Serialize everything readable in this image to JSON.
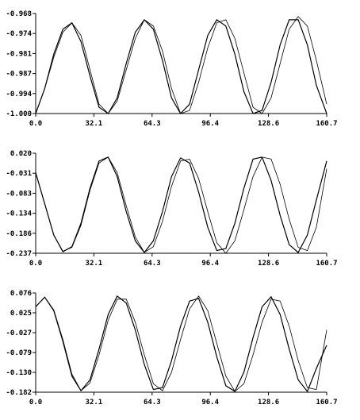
{
  "chart_data": [
    {
      "type": "line",
      "xlim": [
        0,
        160.7
      ],
      "ylim": [
        -1.0,
        -0.968
      ],
      "x_ticks": [
        "0.0",
        "32.1",
        "64.3",
        "96.4",
        "128.6",
        "160.7"
      ],
      "y_ticks": [
        "-0.968",
        "-0.974",
        "-0.981",
        "-0.987",
        "-0.994",
        "-1.000"
      ],
      "series": [
        {
          "x": [
            0,
            5,
            10,
            15,
            20,
            25,
            30,
            35,
            40,
            45,
            50,
            55,
            60,
            65,
            70,
            75,
            80,
            85,
            90,
            95,
            100,
            105,
            110,
            115,
            120,
            125,
            130,
            135,
            140,
            145,
            150,
            155,
            160.7
          ],
          "values": [
            -1.0,
            -0.992,
            -0.981,
            -0.973,
            -0.971,
            -0.977,
            -0.988,
            -0.998,
            -1.0,
            -0.995,
            -0.984,
            -0.974,
            -0.97,
            -0.973,
            -0.983,
            -0.995,
            -1.0,
            -0.997,
            -0.986,
            -0.975,
            -0.97,
            -0.972,
            -0.981,
            -0.993,
            -1.0,
            -0.999,
            -0.99,
            -0.978,
            -0.97,
            -0.97,
            -0.978,
            -0.991,
            -1.0
          ]
        },
        {
          "x": [
            0,
            5,
            10,
            15,
            20,
            25,
            30,
            35,
            40,
            45,
            50,
            55,
            60,
            65,
            70,
            75,
            80,
            85,
            90,
            95,
            100,
            105,
            110,
            115,
            120,
            125,
            130,
            135,
            140,
            145,
            150,
            155,
            160.7
          ],
          "values": [
            -1.0,
            -0.992,
            -0.982,
            -0.974,
            -0.971,
            -0.975,
            -0.986,
            -0.997,
            -1.0,
            -0.996,
            -0.986,
            -0.976,
            -0.97,
            -0.972,
            -0.98,
            -0.992,
            -1.0,
            -0.999,
            -0.99,
            -0.979,
            -0.971,
            -0.97,
            -0.976,
            -0.987,
            -0.998,
            -1.0,
            -0.995,
            -0.984,
            -0.973,
            -0.969,
            -0.972,
            -0.983,
            -0.997
          ]
        }
      ]
    },
    {
      "type": "line",
      "xlim": [
        0,
        160.7
      ],
      "ylim": [
        -0.237,
        0.02
      ],
      "x_ticks": [
        "0.0",
        "32.1",
        "64.3",
        "96.4",
        "128.6",
        "160.7"
      ],
      "y_ticks": [
        "0.020",
        "-0.031",
        "-0.083",
        "-0.134",
        "-0.186",
        "-0.237"
      ],
      "series": [
        {
          "x": [
            0,
            5,
            10,
            15,
            20,
            25,
            30,
            35,
            40,
            45,
            50,
            55,
            60,
            65,
            70,
            75,
            80,
            85,
            90,
            95,
            100,
            105,
            110,
            115,
            120,
            125,
            130,
            135,
            140,
            145,
            150,
            155,
            160.7
          ],
          "values": [
            -0.03,
            -0.11,
            -0.19,
            -0.233,
            -0.22,
            -0.16,
            -0.07,
            0.0,
            0.01,
            -0.04,
            -0.13,
            -0.205,
            -0.235,
            -0.205,
            -0.13,
            -0.04,
            0.008,
            -0.005,
            -0.08,
            -0.17,
            -0.23,
            -0.225,
            -0.16,
            -0.07,
            0.005,
            0.01,
            -0.05,
            -0.14,
            -0.215,
            -0.235,
            -0.19,
            -0.1,
            0.0
          ]
        },
        {
          "x": [
            0,
            5,
            10,
            15,
            20,
            25,
            30,
            35,
            40,
            45,
            50,
            55,
            60,
            65,
            70,
            75,
            80,
            85,
            90,
            95,
            100,
            105,
            110,
            115,
            120,
            125,
            130,
            135,
            140,
            145,
            150,
            155,
            160.7
          ],
          "values": [
            -0.03,
            -0.11,
            -0.19,
            -0.232,
            -0.222,
            -0.165,
            -0.075,
            -0.005,
            0.01,
            -0.03,
            -0.115,
            -0.195,
            -0.235,
            -0.22,
            -0.155,
            -0.065,
            0.0,
            0.005,
            -0.045,
            -0.13,
            -0.21,
            -0.237,
            -0.205,
            -0.125,
            -0.04,
            0.01,
            0.005,
            -0.06,
            -0.15,
            -0.222,
            -0.23,
            -0.17,
            -0.02
          ]
        }
      ]
    },
    {
      "type": "line",
      "xlim": [
        0,
        160.7
      ],
      "ylim": [
        -0.182,
        0.076
      ],
      "x_ticks": [
        "0.0",
        "32.1",
        "64.3",
        "96.4",
        "128.6",
        "160.7"
      ],
      "y_ticks": [
        "0.076",
        "0.025",
        "-0.027",
        "-0.079",
        "-0.130",
        "-0.182"
      ],
      "series": [
        {
          "x": [
            0,
            5,
            10,
            15,
            20,
            25,
            30,
            35,
            40,
            45,
            50,
            55,
            60,
            65,
            70,
            75,
            80,
            85,
            90,
            95,
            100,
            105,
            110,
            115,
            120,
            125,
            130,
            135,
            140,
            145,
            150,
            155,
            160.7
          ],
          "values": [
            0.04,
            0.065,
            0.03,
            -0.05,
            -0.14,
            -0.178,
            -0.15,
            -0.07,
            0.02,
            0.068,
            0.05,
            -0.02,
            -0.11,
            -0.175,
            -0.17,
            -0.1,
            -0.01,
            0.055,
            0.062,
            0.0,
            -0.09,
            -0.165,
            -0.18,
            -0.13,
            -0.04,
            0.04,
            0.066,
            0.02,
            -0.07,
            -0.15,
            -0.18,
            -0.12,
            -0.06
          ]
        },
        {
          "x": [
            0,
            5,
            10,
            15,
            20,
            25,
            30,
            35,
            40,
            45,
            50,
            55,
            60,
            65,
            70,
            75,
            80,
            85,
            90,
            95,
            100,
            105,
            110,
            115,
            120,
            125,
            130,
            135,
            140,
            145,
            150,
            155,
            160.7
          ],
          "values": [
            0.04,
            0.065,
            0.032,
            -0.045,
            -0.135,
            -0.178,
            -0.158,
            -0.085,
            0.005,
            0.06,
            0.06,
            0.0,
            -0.085,
            -0.16,
            -0.178,
            -0.13,
            -0.045,
            0.035,
            0.068,
            0.03,
            -0.055,
            -0.14,
            -0.18,
            -0.16,
            -0.085,
            0.0,
            0.06,
            0.055,
            -0.01,
            -0.1,
            -0.17,
            -0.175,
            -0.02
          ]
        }
      ]
    }
  ]
}
